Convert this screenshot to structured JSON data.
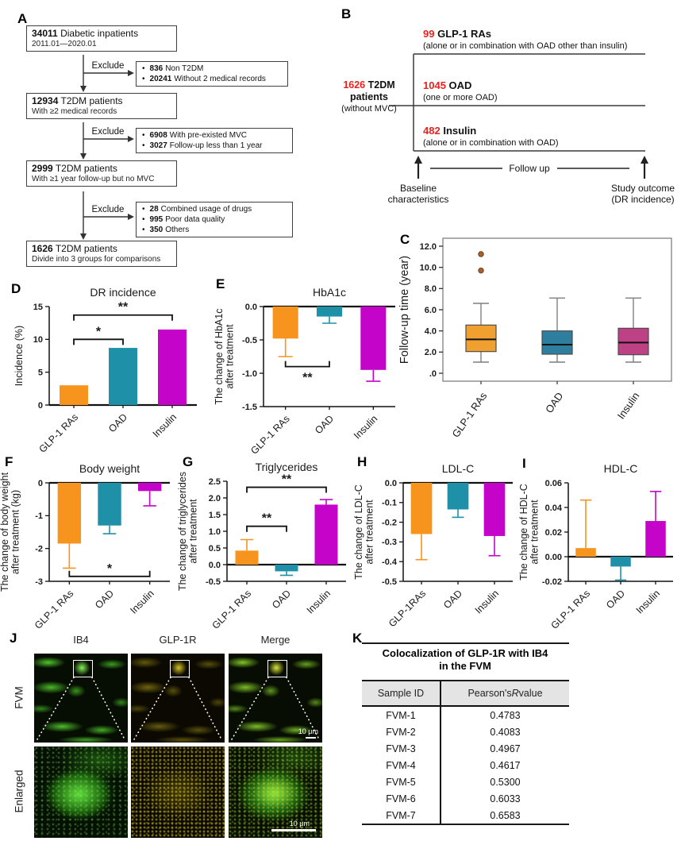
{
  "panel_labels": {
    "A": "A",
    "B": "B",
    "C": "C",
    "D": "D",
    "E": "E",
    "F": "F",
    "G": "G",
    "H": "H",
    "I": "I",
    "J": "J",
    "K": "K"
  },
  "colors": {
    "bar_palette": [
      "#F7941D",
      "#1E91A9",
      "#C405C9"
    ],
    "box_palette": [
      "#EFA02E",
      "#2E7F9F",
      "#BE4186"
    ],
    "red_accent": "#E8231E",
    "outlier": "#A8612E"
  },
  "panelA": {
    "exclude_label": "Exclude",
    "boxes": [
      {
        "num": "34011",
        "title": "Diabetic inpatients",
        "sub": "2011.01—2020.01"
      },
      {
        "num": "12934",
        "title": "T2DM patients",
        "sub": "With ≥2 medical records"
      },
      {
        "num": "2999",
        "title": "T2DM patients",
        "sub": "With ≥1 year follow-up but no MVC"
      },
      {
        "num": "1626",
        "title": "T2DM patients",
        "sub": "Divide into 3 groups for comparisons"
      }
    ],
    "exclusions": [
      [
        {
          "num": "836",
          "text": "Non T2DM"
        },
        {
          "num": "20241",
          "text": "Without 2 medical records"
        }
      ],
      [
        {
          "num": "6908",
          "text": "With pre-existed MVC"
        },
        {
          "num": "3027",
          "text": "Follow-up less than 1 year"
        }
      ],
      [
        {
          "num": "28",
          "text": "Combined usage of drugs"
        },
        {
          "num": "995",
          "text": "Poor data quality"
        },
        {
          "num": "350",
          "text": "Others"
        }
      ]
    ]
  },
  "panelB": {
    "source_num": "1626",
    "source_line1": "T2DM",
    "source_line2": "patients",
    "source_sub": "(without MVC)",
    "branches": [
      {
        "num": "99",
        "name": "GLP-1 RAs",
        "desc": "(alone or in combination with OAD other than insulin)"
      },
      {
        "num": "1045",
        "name": "OAD",
        "desc": "(one or more OAD)"
      },
      {
        "num": "482",
        "name": "Insulin",
        "desc": "(alone or in combination with OAD)"
      }
    ],
    "follow_up": "Follow up",
    "baseline_label": [
      "Baseline",
      "characteristics"
    ],
    "outcome_label": [
      "Study outcome",
      "(DR incidence)"
    ]
  },
  "panelJ": {
    "col_headers": [
      "IB4",
      "GLP-1R",
      "Merge"
    ],
    "row_labels": [
      "FVM",
      "Enlarged"
    ],
    "scale_bar": "10 μm"
  },
  "panelK": {
    "title": [
      "Colocalization of GLP-1R with IB4",
      "in the FVM"
    ],
    "col1_header": "Sample ID",
    "col2_header_pre": "Pearson's ",
    "col2_header_italic": "R",
    "col2_header_post": " value",
    "rows": [
      [
        "FVM-1",
        "0.4783"
      ],
      [
        "FVM-2",
        "0.4083"
      ],
      [
        "FVM-3",
        "0.4967"
      ],
      [
        "FVM-4",
        "0.4617"
      ],
      [
        "FVM-5",
        "0.5300"
      ],
      [
        "FVM-6",
        "0.6033"
      ],
      [
        "FVM-7",
        "0.6583"
      ]
    ]
  },
  "chart_data": [
    {
      "panel": "D",
      "type": "bar",
      "title": "DR incidence",
      "ylabel": [
        "Incidence (%)"
      ],
      "categories": [
        "GLP-1 RAs",
        "OAD",
        "Insulin"
      ],
      "values": [
        3.0,
        8.7,
        11.5
      ],
      "errors": null,
      "ylim": [
        0,
        15
      ],
      "yticks": [
        {
          "v": 0,
          "t": "0"
        },
        {
          "v": 5,
          "t": "5"
        },
        {
          "v": 10,
          "t": "10"
        },
        {
          "v": 15,
          "t": "15"
        }
      ],
      "brackets": [
        {
          "i": 0,
          "j": 1,
          "y": 10.0,
          "dir": "down",
          "label": "*",
          "label_pos": "above"
        },
        {
          "i": 0,
          "j": 2,
          "y": 13.7,
          "dir": "down",
          "label": "**",
          "label_pos": "above"
        }
      ]
    },
    {
      "panel": "E",
      "type": "bar",
      "title": "HbA1c",
      "ylabel": [
        "The change of HbA1c",
        "after treatment"
      ],
      "categories": [
        "GLP-1 RAs",
        "OAD",
        "Insulin"
      ],
      "values": [
        -0.48,
        -0.15,
        -0.95
      ],
      "errors": [
        -0.27,
        -0.1,
        -0.17
      ],
      "ylim": [
        -1.5,
        0
      ],
      "yticks": [
        {
          "v": 0,
          "t": "0.0"
        },
        {
          "v": -0.5,
          "t": "-0.5"
        },
        {
          "v": -1,
          "t": "-1.0"
        },
        {
          "v": -1.5,
          "t": "-1.5"
        }
      ],
      "brackets": [
        {
          "i": 0,
          "j": 1,
          "y": -0.9,
          "dir": "up",
          "label": "**",
          "label_pos": "below"
        }
      ]
    },
    {
      "panel": "F",
      "type": "bar",
      "title": "Body weight",
      "ylabel": [
        "The change of body weight",
        "after treatment (kg)"
      ],
      "categories": [
        "GLP-1 RAs",
        "OAD",
        "Insulin"
      ],
      "values": [
        -1.85,
        -1.3,
        -0.25
      ],
      "errors": [
        -0.75,
        -0.25,
        -0.45
      ],
      "ylim": [
        -3,
        0
      ],
      "yticks": [
        {
          "v": 0,
          "t": "0"
        },
        {
          "v": -1,
          "t": "-1"
        },
        {
          "v": -2,
          "t": "-2"
        },
        {
          "v": -3,
          "t": "-3"
        }
      ],
      "brackets": [
        {
          "i": 0,
          "j": 2,
          "y": -2.85,
          "dir": "up",
          "label": "*",
          "label_pos": "above"
        }
      ]
    },
    {
      "panel": "G",
      "type": "bar",
      "title": "Triglycerides",
      "ylabel": [
        "The change of triglycerides",
        "after treatment"
      ],
      "categories": [
        "GLP-1 RAs",
        "OAD",
        "Insulin"
      ],
      "values": [
        0.42,
        -0.2,
        1.8
      ],
      "errors": [
        0.33,
        -0.12,
        0.15
      ],
      "ylim": [
        -0.5,
        2.5
      ],
      "yticks": [
        {
          "v": 2.5,
          "t": "2.5"
        },
        {
          "v": 2,
          "t": "2.0"
        },
        {
          "v": 1.5,
          "t": "1.5"
        },
        {
          "v": 1,
          "t": "1.0"
        },
        {
          "v": 0.5,
          "t": "0.5"
        },
        {
          "v": 0,
          "t": "0.0"
        },
        {
          "v": -0.5,
          "t": "-0.5"
        }
      ],
      "brackets": [
        {
          "i": 0,
          "j": 1,
          "y": 1.15,
          "dir": "down",
          "label": "**",
          "label_pos": "above"
        },
        {
          "i": 0,
          "j": 2,
          "y": 2.32,
          "dir": "down",
          "label": "**",
          "label_pos": "above"
        }
      ]
    },
    {
      "panel": "H",
      "type": "bar",
      "title": "LDL-C",
      "ylabel": [
        "The change of LDL-C",
        "after treatment"
      ],
      "categories": [
        "GLP-1RAs",
        "OAD",
        "Insulin"
      ],
      "values": [
        -0.26,
        -0.135,
        -0.27
      ],
      "errors": [
        -0.13,
        -0.04,
        -0.1
      ],
      "ylim": [
        -0.5,
        0
      ],
      "yticks": [
        {
          "v": 0,
          "t": "0.0"
        },
        {
          "v": -0.1,
          "t": "-0.1"
        },
        {
          "v": -0.2,
          "t": "-0.2"
        },
        {
          "v": -0.3,
          "t": "-0.3"
        },
        {
          "v": -0.4,
          "t": "-0.4"
        },
        {
          "v": -0.5,
          "t": "-0.5"
        }
      ],
      "brackets": []
    },
    {
      "panel": "I",
      "type": "bar",
      "title": "HDL-C",
      "ylabel": [
        "The change of HDL-C",
        "after treatment"
      ],
      "categories": [
        "GLP-1 RAs",
        "OAD",
        "Insulin"
      ],
      "values": [
        0.007,
        -0.008,
        0.029
      ],
      "errors": [
        0.039,
        -0.011,
        0.024
      ],
      "ylim": [
        -0.02,
        0.06
      ],
      "yticks": [
        {
          "v": 0.06,
          "t": "0.06"
        },
        {
          "v": 0.04,
          "t": "0.04"
        },
        {
          "v": 0.02,
          "t": "0.02"
        },
        {
          "v": 0,
          "t": "0.00"
        },
        {
          "v": -0.02,
          "t": "-0.02"
        }
      ],
      "brackets": []
    },
    {
      "panel": "C",
      "type": "box",
      "title": "",
      "ylabel": [
        "Follow-up time (year)"
      ],
      "categories": [
        "GLP-1 RAs",
        "OAD",
        "Insulin"
      ],
      "ylim": [
        -0.75,
        12.75
      ],
      "yticks": [
        {
          "v": 0,
          "t": ".0"
        },
        {
          "v": 2,
          "t": "2.0"
        },
        {
          "v": 4,
          "t": "4.0"
        },
        {
          "v": 6,
          "t": "6.0"
        },
        {
          "v": 8,
          "t": "8.0"
        },
        {
          "v": 10,
          "t": "10.0"
        },
        {
          "v": 12,
          "t": "12.0"
        }
      ],
      "boxes": [
        {
          "low": 1.05,
          "q1": 2.05,
          "median": 3.2,
          "q3": 4.55,
          "high": 6.6,
          "outliers": [
            9.7,
            11.25
          ]
        },
        {
          "low": 1.05,
          "q1": 1.8,
          "median": 2.7,
          "q3": 4.0,
          "high": 7.1,
          "outliers": []
        },
        {
          "low": 1.05,
          "q1": 1.75,
          "median": 2.9,
          "q3": 4.25,
          "high": 7.1,
          "outliers": []
        }
      ]
    }
  ]
}
